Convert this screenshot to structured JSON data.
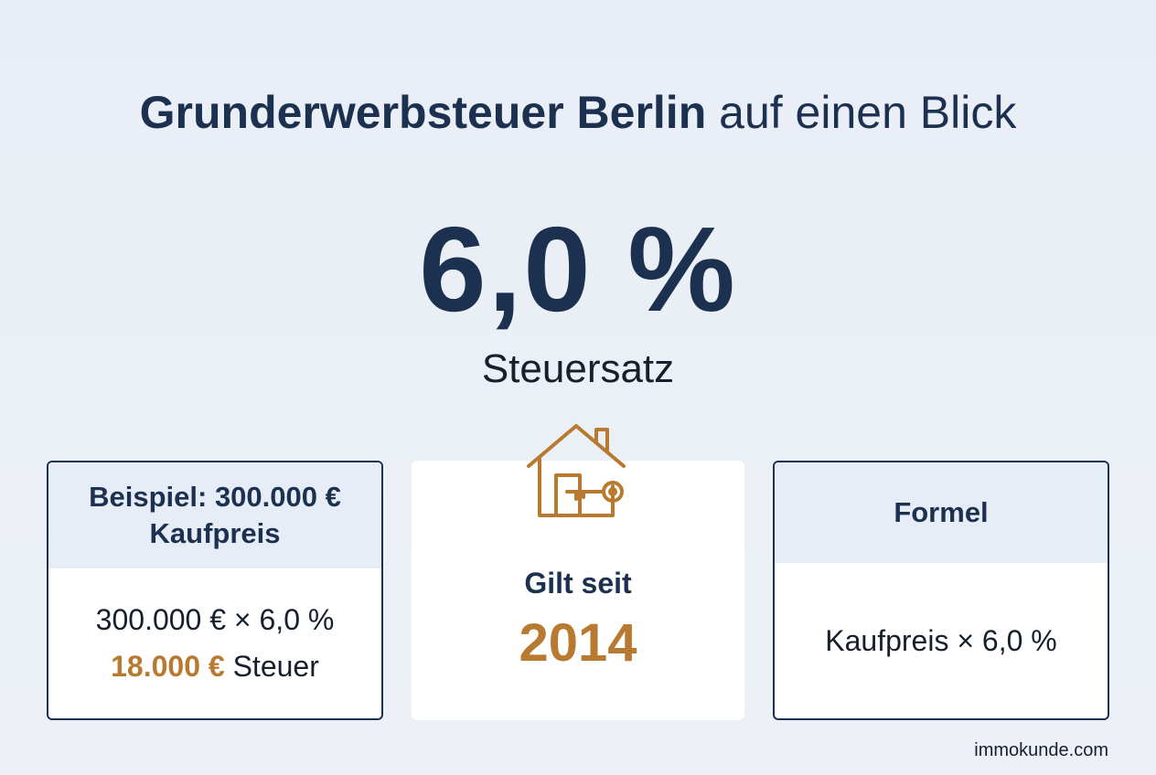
{
  "header": {
    "title_bold": "Grunderwerbsteuer Berlin",
    "title_rest": "auf einen Blick"
  },
  "rate": {
    "value": "6,0 %",
    "label": "Steuersatz"
  },
  "example_card": {
    "title": "Beispiel: 300.000 € Kaufpreis",
    "calculation": "300.000 € × 6,0 %",
    "result_amount": "18.000 €",
    "result_suffix": "Steuer"
  },
  "valid_card": {
    "icon": "house-key-icon",
    "label": "Gilt seit",
    "year": "2014"
  },
  "formula_card": {
    "title": "Formel",
    "formula": "Kaufpreis × 6,0 %"
  },
  "footer": {
    "source": "immokunde.com"
  },
  "colors": {
    "navy": "#1c3150",
    "accent": "#b87a30",
    "background": "#e9eef6"
  }
}
